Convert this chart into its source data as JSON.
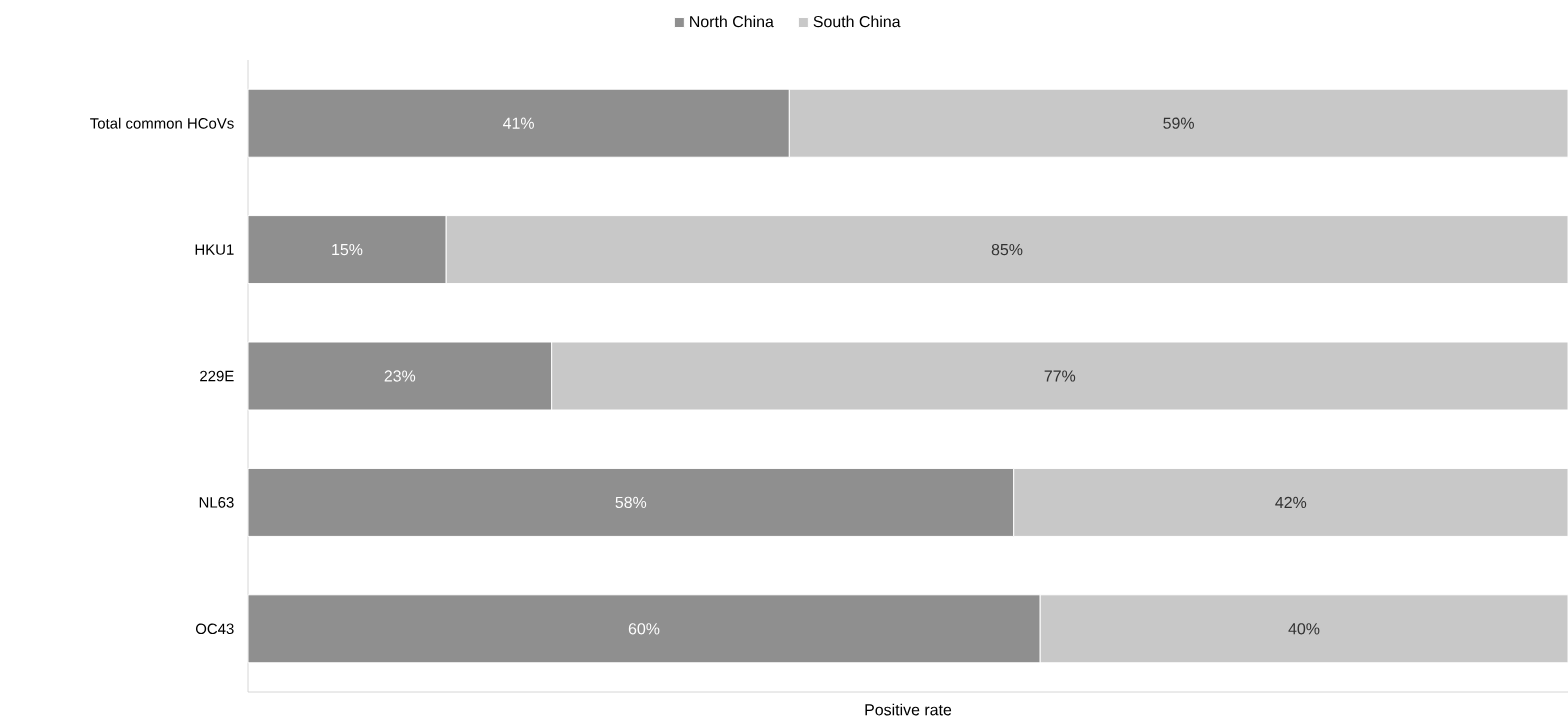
{
  "chart_data": {
    "type": "bar",
    "orientation": "horizontal",
    "stacked": true,
    "xlabel": "Positive rate",
    "categories": [
      "Total common HCoVs",
      "HKU1",
      "229E",
      "NL63",
      "OC43"
    ],
    "xlim": [
      0,
      100
    ],
    "tick_labels": "y",
    "legend": "top",
    "series": [
      {
        "name": "North China",
        "color": "#8f8f8f",
        "values": [
          41,
          15,
          23,
          58,
          60
        ],
        "value_labels": [
          "41%",
          "15%",
          "23%",
          "58%",
          "60%"
        ]
      },
      {
        "name": "South China",
        "color": "#c8c8c8",
        "values": [
          59,
          85,
          77,
          42,
          40
        ],
        "value_labels": [
          "59%",
          "85%",
          "77%",
          "42%",
          "40%"
        ]
      }
    ]
  }
}
